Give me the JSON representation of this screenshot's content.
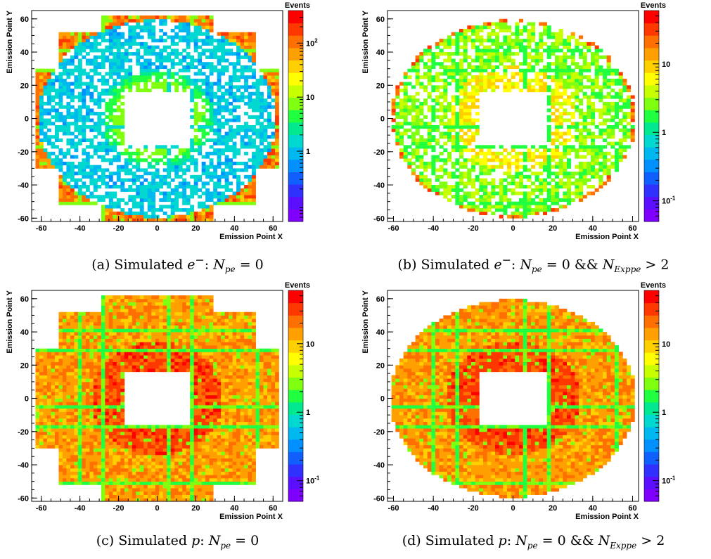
{
  "panels": [
    {
      "id": "a",
      "caption_prefix": "(a) Simulated ",
      "caption_particle": "e",
      "caption_charge": "−",
      "caption_condition": "N",
      "caption_sub": "pe",
      "caption_eq": " = 0",
      "caption_extra": "",
      "caption_extra_sub": "",
      "caption_extra_tail": ""
    },
    {
      "id": "b",
      "caption_prefix": "(b) Simulated ",
      "caption_particle": "e",
      "caption_charge": "−",
      "caption_condition": "N",
      "caption_sub": "pe",
      "caption_eq": " = 0 && ",
      "caption_extra": "N",
      "caption_extra_sub": "Exppe",
      "caption_extra_tail": " > 2"
    },
    {
      "id": "c",
      "caption_prefix": "(c) Simulated ",
      "caption_particle": "p",
      "caption_charge": "",
      "caption_condition": "N",
      "caption_sub": "pe",
      "caption_eq": " = 0",
      "caption_extra": "",
      "caption_extra_sub": "",
      "caption_extra_tail": ""
    },
    {
      "id": "d",
      "caption_prefix": "(d) Simulated ",
      "caption_particle": "p",
      "caption_charge": "",
      "caption_condition": "N",
      "caption_sub": "pe",
      "caption_eq": " = 0 && ",
      "caption_extra": "N",
      "caption_extra_sub": "Exppe",
      "caption_extra_tail": " > 2"
    }
  ],
  "chart_data": [
    {
      "type": "heatmap",
      "xlabel": "Emission Point X",
      "ylabel": "Emission Point Y",
      "zlabel": "Events",
      "z_scale": "log",
      "xlim": [
        -65,
        65
      ],
      "ylim": [
        -62,
        65
      ],
      "x_ticks": [
        "-60",
        "-40",
        "-20",
        "0",
        "20",
        "40",
        "60"
      ],
      "y_ticks": [
        "60",
        "40",
        "20",
        "0",
        "-20",
        "-40",
        "-60"
      ],
      "z_ticks": [
        {
          "label": "10",
          "exp": "2",
          "value": 100
        },
        {
          "label": "10",
          "exp": "",
          "value": 10
        },
        {
          "label": "1",
          "exp": "",
          "value": 1
        }
      ],
      "zlim": [
        0.05,
        400
      ],
      "shape": "cross-tiles-with-circle",
      "central_hole": [
        -17,
        17,
        -17,
        17
      ]
    },
    {
      "type": "heatmap",
      "xlabel": "Emission Point X",
      "ylabel": "Emission Point Y",
      "zlabel": "Events",
      "z_scale": "log",
      "xlim": [
        -63,
        63
      ],
      "ylim": [
        -62,
        65
      ],
      "x_ticks": [
        "-60",
        "-40",
        "-20",
        "0",
        "20",
        "40",
        "60"
      ],
      "y_ticks": [
        "60",
        "40",
        "20",
        "0",
        "-20",
        "-40",
        "-60"
      ],
      "z_ticks": [
        {
          "label": "10",
          "exp": "",
          "value": 10
        },
        {
          "label": "1",
          "exp": "",
          "value": 1
        },
        {
          "label": "10",
          "exp": "-1",
          "value": 0.1
        }
      ],
      "zlim": [
        0.05,
        60
      ],
      "shape": "circle",
      "central_hole": [
        -17,
        17,
        -17,
        17
      ]
    },
    {
      "type": "heatmap",
      "xlabel": "Emission Point X",
      "ylabel": "Emission Point Y",
      "zlabel": "Events",
      "z_scale": "log",
      "xlim": [
        -65,
        65
      ],
      "ylim": [
        -62,
        65
      ],
      "x_ticks": [
        "-60",
        "-40",
        "-20",
        "0",
        "20",
        "40",
        "60"
      ],
      "y_ticks": [
        "60",
        "40",
        "20",
        "0",
        "-20",
        "-40",
        "-60"
      ],
      "z_ticks": [
        {
          "label": "10",
          "exp": "",
          "value": 10
        },
        {
          "label": "1",
          "exp": "",
          "value": 1
        },
        {
          "label": "10",
          "exp": "-1",
          "value": 0.1
        }
      ],
      "zlim": [
        0.05,
        60
      ],
      "shape": "cross-tiles",
      "central_hole": [
        -17,
        17,
        -17,
        17
      ]
    },
    {
      "type": "heatmap",
      "xlabel": "Emission Point X",
      "ylabel": "Emission Point Y",
      "zlabel": "Events",
      "z_scale": "log",
      "xlim": [
        -63,
        63
      ],
      "ylim": [
        -62,
        65
      ],
      "x_ticks": [
        "-60",
        "-40",
        "-20",
        "0",
        "20",
        "40",
        "60"
      ],
      "y_ticks": [
        "60",
        "40",
        "20",
        "0",
        "-20",
        "-40",
        "-60"
      ],
      "z_ticks": [
        {
          "label": "10",
          "exp": "",
          "value": 10
        },
        {
          "label": "1",
          "exp": "",
          "value": 1
        },
        {
          "label": "10",
          "exp": "-1",
          "value": 0.1
        }
      ],
      "zlim": [
        0.05,
        60
      ],
      "shape": "circle",
      "central_hole": [
        -17,
        17,
        -17,
        17
      ]
    }
  ]
}
